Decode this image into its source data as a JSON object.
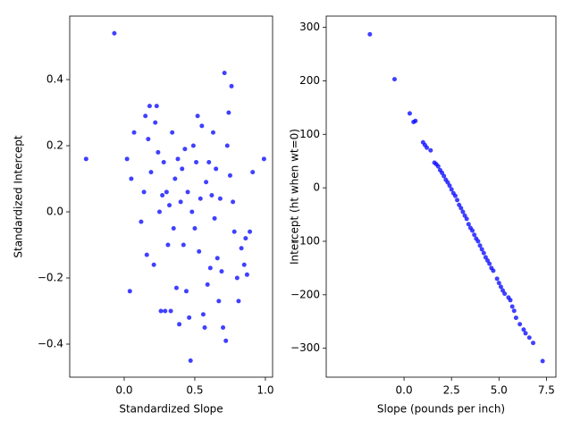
{
  "chart_data": [
    {
      "type": "scatter",
      "xlabel": "Standardized Slope",
      "ylabel": "Standardized Intercept",
      "color": "#0000ff",
      "xlim": [
        -0.386,
        1.051
      ],
      "ylim": [
        -0.5,
        0.592
      ],
      "xticks": [
        {
          "value": 0,
          "label": "0.0"
        },
        {
          "value": 0.5,
          "label": "0.5"
        },
        {
          "value": 1,
          "label": "1.0"
        }
      ],
      "yticks": [
        {
          "value": -0.4,
          "label": "−0.4"
        },
        {
          "value": -0.2,
          "label": "−0.2"
        },
        {
          "value": 0,
          "label": "0.0"
        },
        {
          "value": 0.2,
          "label": "0.2"
        },
        {
          "value": 0.4,
          "label": "0.4"
        }
      ],
      "x": [
        -0.27,
        -0.07,
        0.02,
        0.04,
        0.05,
        0.07,
        0.12,
        0.14,
        0.15,
        0.16,
        0.17,
        0.18,
        0.19,
        0.21,
        0.22,
        0.23,
        0.24,
        0.25,
        0.26,
        0.27,
        0.28,
        0.29,
        0.3,
        0.31,
        0.32,
        0.33,
        0.34,
        0.35,
        0.36,
        0.37,
        0.38,
        0.39,
        0.4,
        0.41,
        0.42,
        0.43,
        0.44,
        0.45,
        0.46,
        0.47,
        0.48,
        0.49,
        0.5,
        0.51,
        0.52,
        0.53,
        0.54,
        0.55,
        0.56,
        0.57,
        0.58,
        0.59,
        0.6,
        0.61,
        0.62,
        0.63,
        0.64,
        0.65,
        0.66,
        0.67,
        0.68,
        0.69,
        0.7,
        0.71,
        0.72,
        0.73,
        0.74,
        0.75,
        0.76,
        0.77,
        0.78,
        0.8,
        0.81,
        0.83,
        0.85,
        0.86,
        0.87,
        0.89,
        0.91,
        0.99
      ],
      "values": [
        0.16,
        0.54,
        0.16,
        -0.24,
        0.1,
        0.24,
        -0.03,
        0.06,
        0.29,
        -0.13,
        0.22,
        0.32,
        0.12,
        -0.16,
        0.27,
        0.32,
        0.18,
        0,
        -0.3,
        0.05,
        0.15,
        -0.3,
        0.06,
        -0.1,
        0.02,
        -0.3,
        0.24,
        -0.05,
        0.1,
        -0.23,
        0.16,
        -0.34,
        0.03,
        0.13,
        -0.1,
        0.19,
        -0.24,
        0.06,
        -0.32,
        -0.45,
        0,
        0.2,
        -0.05,
        0.15,
        0.29,
        -0.12,
        0.04,
        0.26,
        -0.31,
        -0.35,
        0.09,
        -0.22,
        0.15,
        -0.17,
        0.05,
        0.24,
        -0.02,
        0.13,
        -0.14,
        -0.27,
        0.04,
        -0.18,
        -0.35,
        0.42,
        -0.39,
        0.2,
        0.3,
        0.11,
        0.38,
        0.03,
        -0.06,
        -0.2,
        -0.27,
        -0.11,
        -0.16,
        -0.08,
        -0.19,
        -0.06,
        0.12,
        0.16
      ]
    },
    {
      "type": "scatter",
      "xlabel": "Slope (pounds per inch)",
      "ylabel": "Intercept (ht when wt=0)",
      "color": "#0000ff",
      "xlim": [
        -4.1,
        8.0
      ],
      "ylim": [
        -354,
        321
      ],
      "xticks": [
        {
          "value": 0,
          "label": "0.0"
        },
        2.5,
        {
          "value": 5,
          "label": "5.0"
        },
        7.5
      ],
      "yticks": [
        {
          "value": -300,
          "label": "−300"
        },
        {
          "value": -200,
          "label": "−200"
        },
        {
          "value": -100,
          "label": "−100"
        },
        0,
        100,
        200,
        300
      ],
      "x": [
        -1.8,
        -0.5,
        0.3,
        0.5,
        0.6,
        1.0,
        1.1,
        1.2,
        1.4,
        1.6,
        1.7,
        1.8,
        1.9,
        2.0,
        2.1,
        2.2,
        2.3,
        2.4,
        2.5,
        2.6,
        2.7,
        2.8,
        2.9,
        3.0,
        3.1,
        3.2,
        3.3,
        3.4,
        3.5,
        3.6,
        3.7,
        3.8,
        3.9,
        4.0,
        4.1,
        4.2,
        4.3,
        4.4,
        4.5,
        4.6,
        4.7,
        4.9,
        5.0,
        5.1,
        5.2,
        5.3,
        5.5,
        5.6,
        5.7,
        5.8,
        5.9,
        6.1,
        6.3,
        6.4,
        6.6,
        6.8,
        7.3
      ],
      "values": [
        287,
        203,
        139,
        123,
        125,
        85,
        80,
        75,
        70,
        47,
        44,
        40,
        33,
        28,
        22,
        15,
        10,
        4,
        -3,
        -10,
        -15,
        -23,
        -32,
        -38,
        -45,
        -52,
        -58,
        -68,
        -75,
        -80,
        -88,
        -95,
        -100,
        -108,
        -115,
        -122,
        -130,
        -136,
        -142,
        -150,
        -155,
        -170,
        -178,
        -185,
        -192,
        -198,
        -205,
        -210,
        -222,
        -230,
        -243,
        -255,
        -265,
        -272,
        -280,
        -290,
        -324
      ]
    }
  ]
}
